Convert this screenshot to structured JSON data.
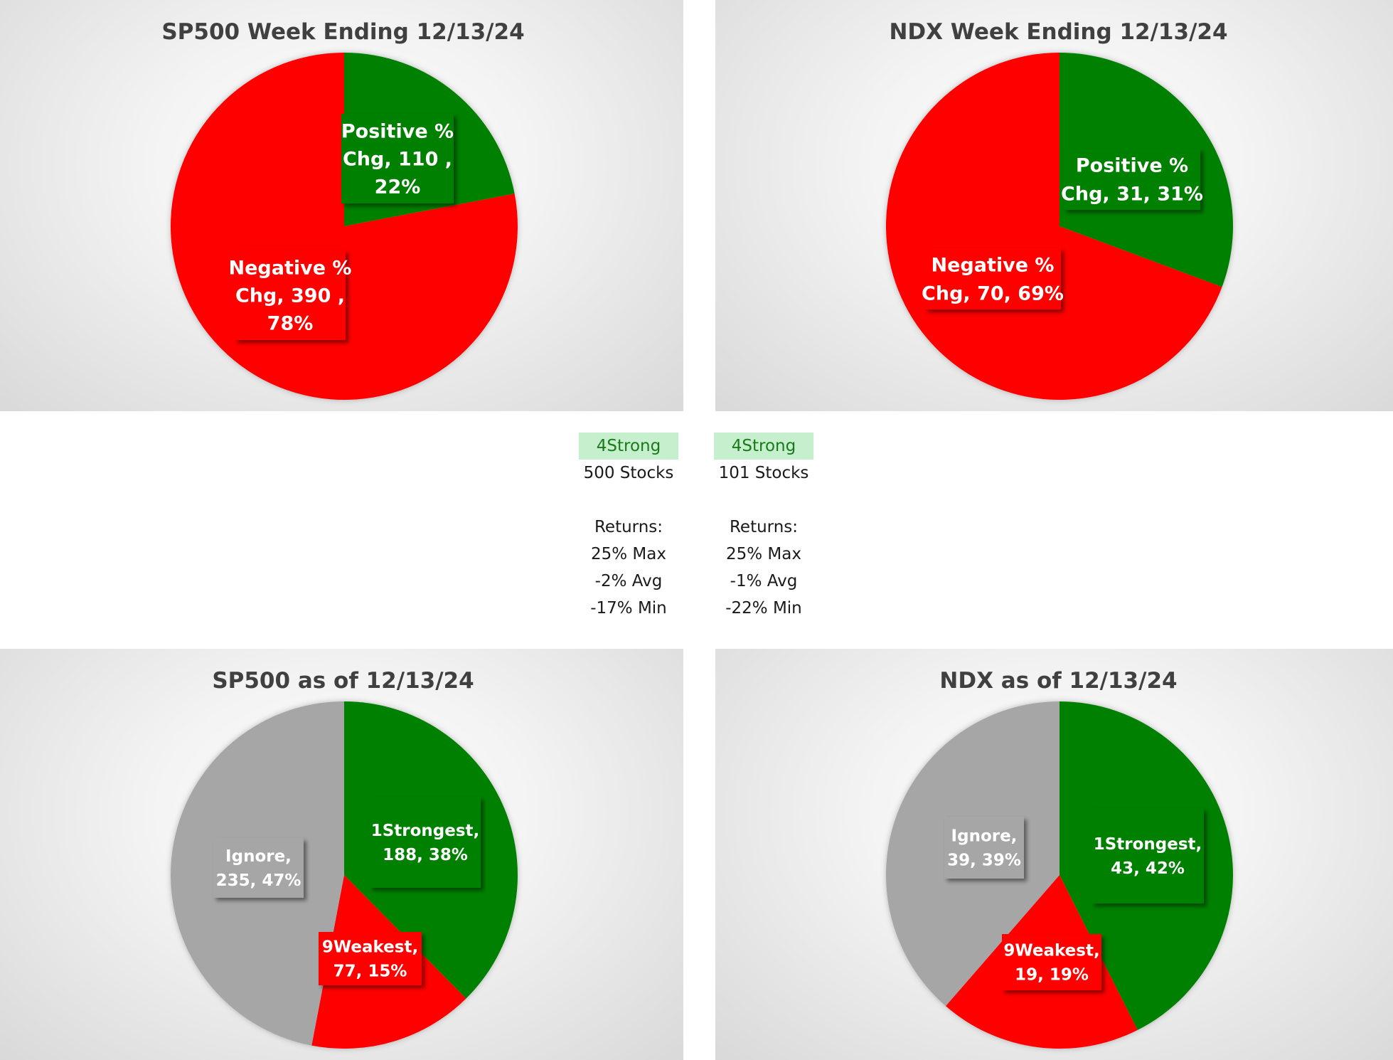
{
  "colors": {
    "positive": "#008000",
    "negative": "#ff0000",
    "ignore": "#a6a6a6"
  },
  "chart_data": [
    {
      "type": "pie",
      "title": "SP500 Week Ending 12/13/24",
      "slices": [
        {
          "name": "Positive % Chg",
          "value": 110,
          "percent": 22,
          "color": "#008000",
          "label_lines": [
            "Positive %",
            "Chg,  110 ,",
            "22%"
          ]
        },
        {
          "name": "Negative % Chg",
          "value": 390,
          "percent": 78,
          "color": "#ff0000",
          "label_lines": [
            "Negative %",
            "Chg,  390 ,",
            "78%"
          ]
        }
      ]
    },
    {
      "type": "pie",
      "title": "NDX Week Ending 12/13/24",
      "slices": [
        {
          "name": "Positive % Chg",
          "value": 31,
          "percent": 31,
          "color": "#008000",
          "label_lines": [
            "Positive %",
            "Chg, 31, 31%"
          ]
        },
        {
          "name": "Negative % Chg",
          "value": 70,
          "percent": 69,
          "color": "#ff0000",
          "label_lines": [
            "Negative %",
            "Chg, 70, 69%"
          ]
        }
      ]
    },
    {
      "type": "pie",
      "title": "SP500 as of 12/13/24",
      "slices": [
        {
          "name": "1Strongest",
          "value": 188,
          "percent": 38,
          "color": "#008000",
          "label_lines": [
            "1Strongest,",
            "188, 38%"
          ]
        },
        {
          "name": "9Weakest",
          "value": 77,
          "percent": 15,
          "color": "#ff0000",
          "label_lines": [
            "9Weakest,",
            "77, 15%"
          ]
        },
        {
          "name": "Ignore",
          "value": 235,
          "percent": 47,
          "color": "#a6a6a6",
          "label_lines": [
            "Ignore,",
            "235, 47%"
          ]
        }
      ]
    },
    {
      "type": "pie",
      "title": "NDX as of 12/13/24",
      "slices": [
        {
          "name": "1Strongest",
          "value": 43,
          "percent": 42,
          "color": "#008000",
          "label_lines": [
            "1Strongest,",
            "43, 42%"
          ]
        },
        {
          "name": "9Weakest",
          "value": 19,
          "percent": 19,
          "color": "#ff0000",
          "label_lines": [
            "9Weakest,",
            "19, 19%"
          ]
        },
        {
          "name": "Ignore",
          "value": 39,
          "percent": 39,
          "color": "#a6a6a6",
          "label_lines": [
            "Ignore,",
            "39, 39%"
          ]
        }
      ]
    }
  ],
  "stats": [
    {
      "badge": "4Strong",
      "stocks": "500 Stocks",
      "returns_label": "Returns:",
      "max": "25% Max",
      "avg": "-2% Avg",
      "min": "-17% Min"
    },
    {
      "badge": "4Strong",
      "stocks": "101 Stocks",
      "returns_label": "Returns:",
      "max": "25% Max",
      "avg": "-1% Avg",
      "min": "-22% Min"
    }
  ]
}
